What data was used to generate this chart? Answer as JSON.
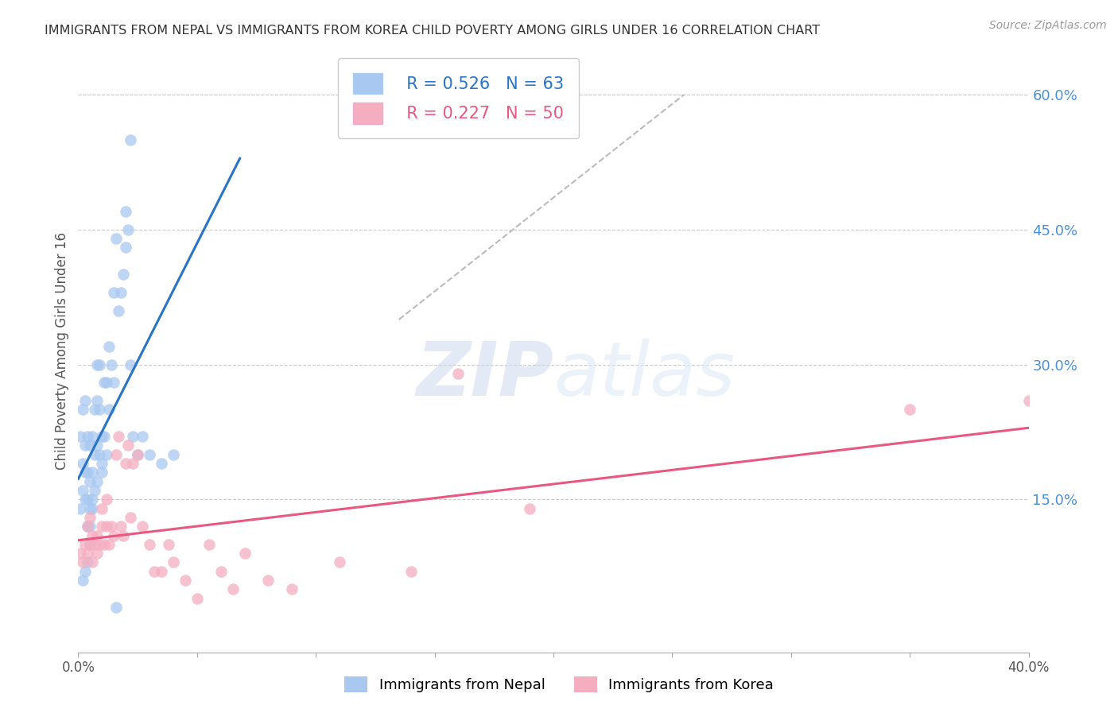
{
  "title": "IMMIGRANTS FROM NEPAL VS IMMIGRANTS FROM KOREA CHILD POVERTY AMONG GIRLS UNDER 16 CORRELATION CHART",
  "source": "Source: ZipAtlas.com",
  "ylabel": "Child Poverty Among Girls Under 16",
  "xlim": [
    0.0,
    0.4
  ],
  "ylim": [
    -0.02,
    0.65
  ],
  "yticks_right": [
    0.15,
    0.3,
    0.45,
    0.6
  ],
  "ytick_right_labels": [
    "15.0%",
    "30.0%",
    "45.0%",
    "60.0%"
  ],
  "nepal_R": 0.526,
  "nepal_N": 63,
  "korea_R": 0.227,
  "korea_N": 50,
  "nepal_color": "#a8c8f0",
  "korea_color": "#f5aec0",
  "nepal_line_color": "#2874c5",
  "korea_line_color": "#e85880",
  "nepal_scatter_x": [
    0.001,
    0.001,
    0.002,
    0.002,
    0.002,
    0.003,
    0.003,
    0.003,
    0.003,
    0.004,
    0.004,
    0.004,
    0.004,
    0.005,
    0.005,
    0.005,
    0.005,
    0.006,
    0.006,
    0.006,
    0.007,
    0.007,
    0.007,
    0.008,
    0.008,
    0.008,
    0.009,
    0.009,
    0.009,
    0.01,
    0.01,
    0.011,
    0.011,
    0.012,
    0.012,
    0.013,
    0.013,
    0.014,
    0.015,
    0.015,
    0.016,
    0.017,
    0.018,
    0.019,
    0.02,
    0.021,
    0.022,
    0.023,
    0.025,
    0.027,
    0.03,
    0.035,
    0.04,
    0.016,
    0.022,
    0.01,
    0.008,
    0.006,
    0.005,
    0.004,
    0.003,
    0.002,
    0.02
  ],
  "nepal_scatter_y": [
    0.14,
    0.22,
    0.16,
    0.19,
    0.25,
    0.15,
    0.18,
    0.21,
    0.26,
    0.12,
    0.15,
    0.18,
    0.22,
    0.12,
    0.14,
    0.17,
    0.21,
    0.15,
    0.18,
    0.22,
    0.16,
    0.2,
    0.25,
    0.17,
    0.21,
    0.26,
    0.2,
    0.25,
    0.3,
    0.18,
    0.22,
    0.22,
    0.28,
    0.2,
    0.28,
    0.25,
    0.32,
    0.3,
    0.28,
    0.38,
    0.44,
    0.36,
    0.38,
    0.4,
    0.43,
    0.45,
    0.3,
    0.22,
    0.2,
    0.22,
    0.2,
    0.19,
    0.2,
    0.03,
    0.55,
    0.19,
    0.3,
    0.14,
    0.1,
    0.08,
    0.07,
    0.06,
    0.47
  ],
  "korea_scatter_x": [
    0.001,
    0.002,
    0.003,
    0.004,
    0.004,
    0.005,
    0.005,
    0.006,
    0.006,
    0.007,
    0.008,
    0.008,
    0.009,
    0.01,
    0.01,
    0.011,
    0.012,
    0.012,
    0.013,
    0.014,
    0.015,
    0.016,
    0.017,
    0.018,
    0.019,
    0.02,
    0.021,
    0.022,
    0.023,
    0.025,
    0.027,
    0.03,
    0.032,
    0.035,
    0.038,
    0.04,
    0.045,
    0.05,
    0.055,
    0.06,
    0.065,
    0.07,
    0.08,
    0.09,
    0.11,
    0.14,
    0.16,
    0.19,
    0.35,
    0.4
  ],
  "korea_scatter_y": [
    0.09,
    0.08,
    0.1,
    0.09,
    0.12,
    0.1,
    0.13,
    0.08,
    0.11,
    0.1,
    0.09,
    0.11,
    0.1,
    0.12,
    0.14,
    0.1,
    0.12,
    0.15,
    0.1,
    0.12,
    0.11,
    0.2,
    0.22,
    0.12,
    0.11,
    0.19,
    0.21,
    0.13,
    0.19,
    0.2,
    0.12,
    0.1,
    0.07,
    0.07,
    0.1,
    0.08,
    0.06,
    0.04,
    0.1,
    0.07,
    0.05,
    0.09,
    0.06,
    0.05,
    0.08,
    0.07,
    0.29,
    0.14,
    0.25,
    0.26
  ],
  "dashed_line": [
    [
      0.135,
      0.255
    ],
    [
      0.35,
      0.6
    ]
  ],
  "watermark_zip": "ZIP",
  "watermark_atlas": "atlas",
  "background_color": "#ffffff",
  "grid_color": "#cccccc",
  "title_color": "#333333",
  "right_axis_color": "#4a90d9"
}
